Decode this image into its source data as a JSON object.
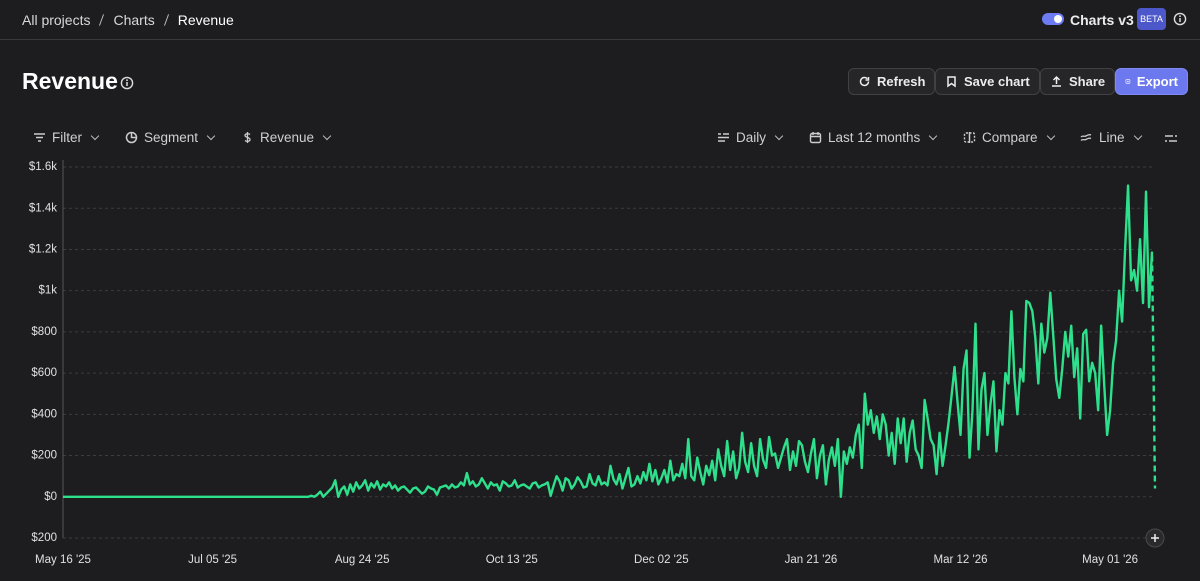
{
  "breadcrumbs": [
    "All projects",
    "Charts",
    "Revenue"
  ],
  "header": {
    "toggle_label": "Charts v3",
    "badge": "BETA"
  },
  "title": "Revenue",
  "actions": [
    "Refresh",
    "Save chart",
    "Share",
    "Export"
  ],
  "toolbar_left": [
    "Filter",
    "Segment",
    "Revenue"
  ],
  "toolbar_right": [
    "Daily",
    "Last 12 months",
    "Compare",
    "Line"
  ],
  "chart_data": {
    "type": "line",
    "color": "#2ee08c",
    "grid": true,
    "xlim": [
      0,
      365
    ],
    "xticks": [
      {
        "value": 0,
        "label": "May 16 '25"
      },
      {
        "value": 50,
        "label": "Jul 05 '25"
      },
      {
        "value": 100,
        "label": "Aug 24 '25"
      },
      {
        "value": 150,
        "label": "Oct 13 '25"
      },
      {
        "value": 200,
        "label": "Dec 02 '25"
      },
      {
        "value": 250,
        "label": "Jan 21 '26"
      },
      {
        "value": 300,
        "label": "Mar 12 '26"
      },
      {
        "value": 350,
        "label": "May 01 '26"
      }
    ],
    "ylim": [
      -200,
      1600
    ],
    "yticks": [
      {
        "value": 1600,
        "label": "$1.6k"
      },
      {
        "value": 1400,
        "label": "$1.4k"
      },
      {
        "value": 1200,
        "label": "$1.2k"
      },
      {
        "value": 1000,
        "label": "$1k"
      },
      {
        "value": 800,
        "label": "$800"
      },
      {
        "value": 600,
        "label": "$600"
      },
      {
        "value": 400,
        "label": "$400"
      },
      {
        "value": 200,
        "label": "$200"
      },
      {
        "value": 0,
        "label": "$0"
      },
      {
        "value": -200,
        "label": "$200"
      }
    ],
    "values": [
      0,
      0,
      0,
      0,
      0,
      0,
      0,
      0,
      0,
      0,
      0,
      0,
      0,
      0,
      0,
      0,
      0,
      0,
      0,
      0,
      0,
      0,
      0,
      0,
      0,
      0,
      0,
      0,
      0,
      0,
      0,
      0,
      0,
      0,
      0,
      0,
      0,
      0,
      0,
      0,
      0,
      0,
      0,
      0,
      0,
      0,
      0,
      0,
      0,
      0,
      0,
      0,
      0,
      0,
      0,
      0,
      0,
      0,
      0,
      0,
      0,
      0,
      0,
      0,
      0,
      0,
      0,
      0,
      0,
      0,
      0,
      0,
      0,
      0,
      0,
      0,
      0,
      0,
      0,
      0,
      0,
      0,
      0,
      5,
      0,
      10,
      25,
      0,
      15,
      30,
      45,
      80,
      0,
      35,
      50,
      10,
      60,
      25,
      70,
      40,
      55,
      80,
      30,
      65,
      45,
      75,
      35,
      60,
      50,
      70,
      40,
      55,
      30,
      45,
      50,
      35,
      20,
      40,
      45,
      30,
      15,
      25,
      50,
      40,
      35,
      10,
      45,
      50,
      55,
      40,
      60,
      45,
      50,
      70,
      55,
      115,
      60,
      75,
      50,
      60,
      90,
      65,
      40,
      70,
      55,
      60,
      30,
      75,
      65,
      50,
      55,
      80,
      45,
      55,
      60,
      50,
      40,
      65,
      70,
      45,
      55,
      60,
      70,
      5,
      55,
      100,
      75,
      30,
      90,
      80,
      40,
      60,
      95,
      75,
      45,
      50,
      110,
      65,
      55,
      100,
      60,
      70,
      55,
      150,
      85,
      60,
      110,
      40,
      90,
      140,
      50,
      60,
      100,
      65,
      120,
      80,
      160,
      75,
      130,
      60,
      90,
      130,
      70,
      175,
      80,
      110,
      100,
      160,
      90,
      280,
      100,
      80,
      190,
      120,
      60,
      150,
      105,
      175,
      80,
      230,
      150,
      100,
      270,
      130,
      220,
      90,
      140,
      310,
      170,
      120,
      260,
      150,
      100,
      280,
      180,
      140,
      290,
      200,
      210,
      140,
      190,
      240,
      280,
      130,
      220,
      150,
      270,
      250,
      170,
      120,
      210,
      280,
      90,
      200,
      250,
      60,
      180,
      240,
      150,
      280,
      0,
      220,
      160,
      240,
      190,
      300,
      350,
      140,
      500,
      350,
      420,
      310,
      390,
      280,
      400,
      350,
      200,
      310,
      160,
      380,
      260,
      380,
      170,
      310,
      370,
      230,
      200,
      140,
      470,
      380,
      280,
      250,
      110,
      310,
      150,
      250,
      360,
      490,
      630,
      460,
      300,
      620,
      710,
      190,
      420,
      840,
      230,
      520,
      600,
      300,
      450,
      560,
      220,
      420,
      350,
      600,
      550,
      900,
      580,
      400,
      620,
      560,
      950,
      940,
      900,
      770,
      550,
      840,
      700,
      770,
      990,
      780,
      570,
      480,
      620,
      800,
      680,
      830,
      580,
      720,
      380,
      790,
      810,
      560,
      650,
      600,
      420,
      830,
      550,
      300,
      420,
      650,
      760,
      1000,
      850,
      1200,
      1510,
      1050,
      1100,
      1000,
      1250,
      940,
      1480,
      920,
      1190,
      40
    ]
  }
}
